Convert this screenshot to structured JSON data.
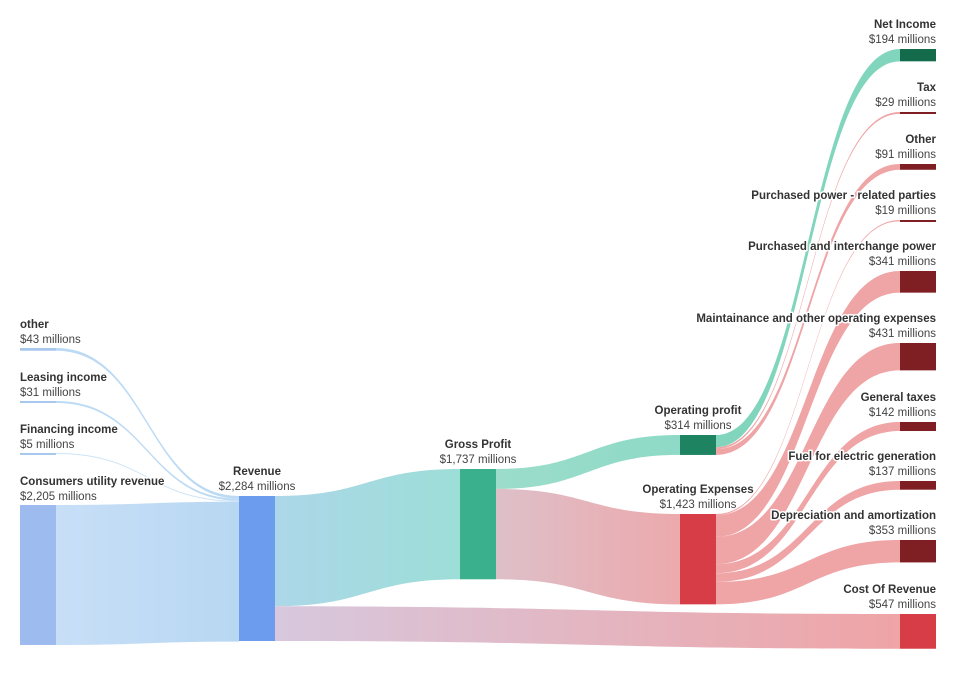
{
  "chart_data": {
    "type": "sankey",
    "unit": "$ millions",
    "value_format": "${v} millions",
    "nodes": [
      {
        "id": "other_in",
        "name": "other",
        "value": 43,
        "value_label": "$43 millions",
        "color": "#a7c7ec"
      },
      {
        "id": "leasing",
        "name": "Leasing income",
        "value": 31,
        "value_label": "$31 millions",
        "color": "#a7c7ec"
      },
      {
        "id": "financing",
        "name": "Financing income",
        "value": 5,
        "value_label": "$5 millions",
        "color": "#a7c7ec"
      },
      {
        "id": "consumers",
        "name": "Consumers utility revenue",
        "value": 2205,
        "value_label": "$2,205 millions",
        "color": "#9dbbee"
      },
      {
        "id": "revenue",
        "name": "Revenue",
        "value": 2284,
        "value_label": "$2,284 millions",
        "color": "#6b9ced"
      },
      {
        "id": "gross_profit",
        "name": "Gross Profit",
        "value": 1737,
        "value_label": "$1,737 millions",
        "color": "#3ab08d"
      },
      {
        "id": "cost_of_revenue",
        "name": "Cost Of Revenue",
        "value": 547,
        "value_label": "$547 millions",
        "color": "#d63d46"
      },
      {
        "id": "operating_profit",
        "name": "Operating profit",
        "value": 314,
        "value_label": "$314 millions",
        "color": "#1e8361"
      },
      {
        "id": "operating_expenses",
        "name": "Operating Expenses",
        "value": 1423,
        "value_label": "$1,423 millions",
        "color": "#d63d46"
      },
      {
        "id": "net_income",
        "name": "Net Income",
        "value": 194,
        "value_label": "$194 millions",
        "color": "#136b4c"
      },
      {
        "id": "tax",
        "name": "Tax",
        "value": 29,
        "value_label": "$29 millions",
        "color": "#7f1f24"
      },
      {
        "id": "other_exp",
        "name": "Other",
        "value": 91,
        "value_label": "$91 millions",
        "color": "#7f1f24"
      },
      {
        "id": "pp_related",
        "name": "Purchased power - related parties",
        "value": 19,
        "value_label": "$19 millions",
        "color": "#7f1f24"
      },
      {
        "id": "pp_interchange",
        "name": "Purchased and interchange power",
        "value": 341,
        "value_label": "$341 millions",
        "color": "#7f1f24"
      },
      {
        "id": "maintenance",
        "name": "Maintainance and other operating expenses",
        "value": 431,
        "value_label": "$431 millions",
        "color": "#7f1f24"
      },
      {
        "id": "general_taxes",
        "name": "General taxes",
        "value": 142,
        "value_label": "$142 millions",
        "color": "#7f1f24"
      },
      {
        "id": "fuel",
        "name": "Fuel for electric generation",
        "value": 137,
        "value_label": "$137 millions",
        "color": "#7f1f24"
      },
      {
        "id": "depreciation",
        "name": "Depreciation and amortization",
        "value": 353,
        "value_label": "$353 millions",
        "color": "#7f1f24"
      }
    ],
    "links": [
      {
        "source": "other_in",
        "target": "revenue",
        "value": 43
      },
      {
        "source": "leasing",
        "target": "revenue",
        "value": 31
      },
      {
        "source": "financing",
        "target": "revenue",
        "value": 5
      },
      {
        "source": "consumers",
        "target": "revenue",
        "value": 2205
      },
      {
        "source": "revenue",
        "target": "gross_profit",
        "value": 1737
      },
      {
        "source": "revenue",
        "target": "cost_of_revenue",
        "value": 547
      },
      {
        "source": "gross_profit",
        "target": "operating_profit",
        "value": 314
      },
      {
        "source": "gross_profit",
        "target": "operating_expenses",
        "value": 1423
      },
      {
        "source": "operating_profit",
        "target": "net_income",
        "value": 194
      },
      {
        "source": "operating_profit",
        "target": "tax",
        "value": 29
      },
      {
        "source": "operating_profit",
        "target": "other_exp",
        "value": 91
      },
      {
        "source": "operating_expenses",
        "target": "pp_related",
        "value": 19
      },
      {
        "source": "operating_expenses",
        "target": "pp_interchange",
        "value": 341
      },
      {
        "source": "operating_expenses",
        "target": "maintenance",
        "value": 431
      },
      {
        "source": "operating_expenses",
        "target": "general_taxes",
        "value": 142
      },
      {
        "source": "operating_expenses",
        "target": "fuel",
        "value": 137
      },
      {
        "source": "operating_expenses",
        "target": "depreciation",
        "value": 353
      }
    ]
  }
}
